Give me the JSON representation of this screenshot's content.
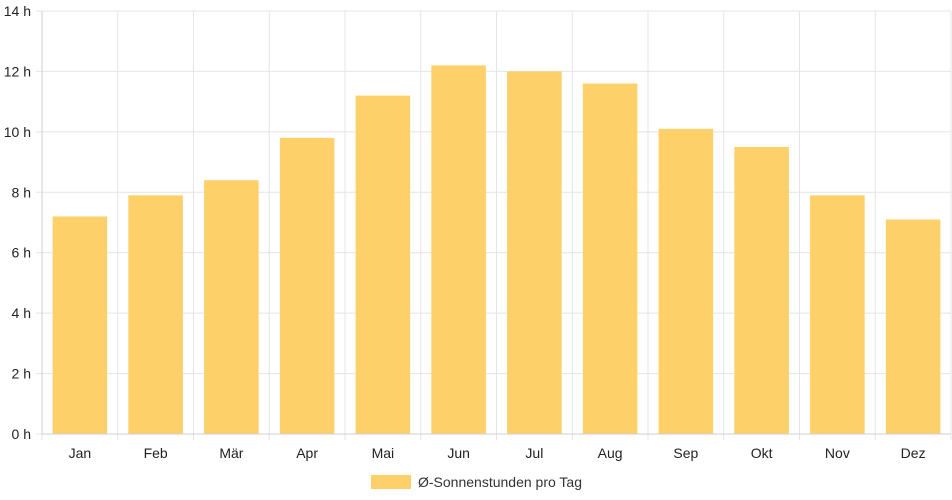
{
  "chart_data": {
    "type": "bar",
    "categories": [
      "Jan",
      "Feb",
      "Mär",
      "Apr",
      "Mai",
      "Jun",
      "Jul",
      "Aug",
      "Sep",
      "Okt",
      "Nov",
      "Dez"
    ],
    "series": [
      {
        "name": "Ø-Sonnenstunden pro Tag",
        "values": [
          7.2,
          7.9,
          8.4,
          9.8,
          11.2,
          12.2,
          12.0,
          11.6,
          10.1,
          9.5,
          7.9,
          7.1
        ],
        "color": "#fdd069"
      }
    ],
    "y_ticks": [
      "0 h",
      "2 h",
      "4 h",
      "6 h",
      "8 h",
      "10 h",
      "12 h",
      "14 h"
    ],
    "ylim": [
      0,
      14
    ],
    "grid": true,
    "legend_position": "bottom"
  }
}
